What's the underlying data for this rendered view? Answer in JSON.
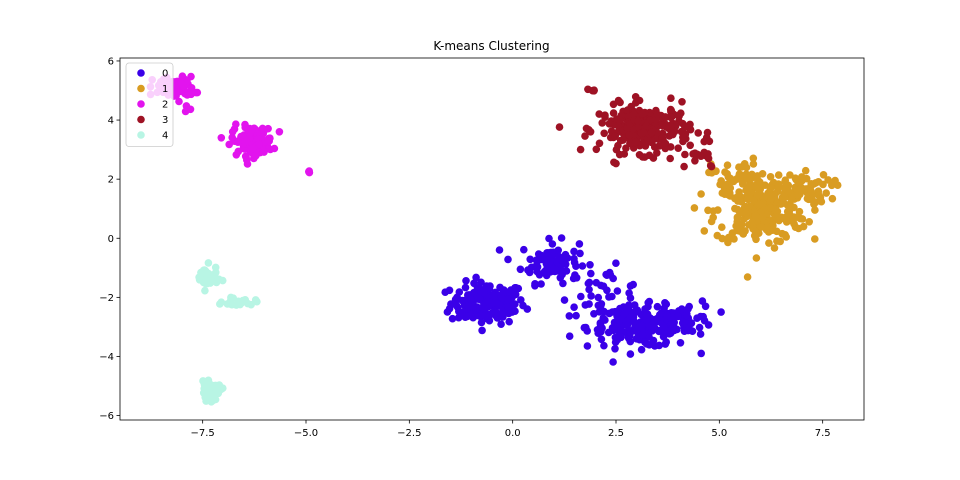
{
  "chart_data": {
    "type": "scatter",
    "title": "K-means Clustering",
    "xlabel": "",
    "ylabel": "",
    "xlim": [
      -9.5,
      8.5
    ],
    "ylim": [
      -6.15,
      6.1
    ],
    "xticks": [
      -7.5,
      -5.0,
      -2.5,
      0.0,
      2.5,
      5.0,
      7.5
    ],
    "xtick_labels": [
      "−7.5",
      "−5.0",
      "−2.5",
      "0.0",
      "2.5",
      "5.0",
      "7.5"
    ],
    "yticks": [
      -6,
      -4,
      -2,
      0,
      2,
      4,
      6
    ],
    "ytick_labels": [
      "−6",
      "−4",
      "−2",
      "0",
      "2",
      "4",
      "6"
    ],
    "grid": false,
    "legend_position": "top-left",
    "series": [
      {
        "name": "0",
        "color": "#3a00e8",
        "clusters": [
          {
            "cx": -0.6,
            "cy": -2.2,
            "sx": 0.45,
            "sy": 0.35,
            "n": 170
          },
          {
            "cx": 0.9,
            "cy": -0.8,
            "sx": 0.35,
            "sy": 0.35,
            "n": 80
          },
          {
            "cx": 3.1,
            "cy": -3.0,
            "sx": 0.65,
            "sy": 0.35,
            "n": 190
          },
          {
            "cx": 4.2,
            "cy": -2.7,
            "sx": 0.35,
            "sy": 0.3,
            "n": 45
          },
          {
            "cx": 2.2,
            "cy": -1.8,
            "sx": 0.5,
            "sy": 0.4,
            "n": 35
          }
        ]
      },
      {
        "name": "1",
        "color": "#d99c22",
        "clusters": [
          {
            "cx": 6.0,
            "cy": 0.9,
            "sx": 0.55,
            "sy": 0.55,
            "n": 230
          },
          {
            "cx": 6.8,
            "cy": 1.7,
            "sx": 0.45,
            "sy": 0.25,
            "n": 60
          },
          {
            "cx": 5.4,
            "cy": 2.1,
            "sx": 0.3,
            "sy": 0.3,
            "n": 40
          }
        ]
      },
      {
        "name": "2",
        "color": "#e214ee",
        "clusters": [
          {
            "cx": -8.2,
            "cy": 5.1,
            "sx": 0.25,
            "sy": 0.18,
            "n": 80
          },
          {
            "cx": -6.3,
            "cy": 3.3,
            "sx": 0.25,
            "sy": 0.25,
            "n": 110
          },
          {
            "cx": -7.8,
            "cy": 4.3,
            "sx": 0.15,
            "sy": 0.15,
            "n": 5
          },
          {
            "cx": -4.9,
            "cy": 2.25,
            "sx": 0.02,
            "sy": 0.02,
            "n": 3
          }
        ]
      },
      {
        "name": "3",
        "color": "#9e1224",
        "clusters": [
          {
            "cx": 3.2,
            "cy": 3.7,
            "sx": 0.55,
            "sy": 0.4,
            "n": 240
          },
          {
            "cx": 4.5,
            "cy": 2.7,
            "sx": 0.3,
            "sy": 0.2,
            "n": 15
          },
          {
            "cx": 1.9,
            "cy": 5.0,
            "sx": 0.1,
            "sy": 0.05,
            "n": 4
          }
        ]
      },
      {
        "name": "4",
        "color": "#b8f5e4",
        "clusters": [
          {
            "cx": -7.4,
            "cy": -1.35,
            "sx": 0.13,
            "sy": 0.2,
            "n": 45
          },
          {
            "cx": -6.6,
            "cy": -2.15,
            "sx": 0.2,
            "sy": 0.08,
            "n": 20
          },
          {
            "cx": -7.3,
            "cy": -5.2,
            "sx": 0.13,
            "sy": 0.15,
            "n": 40
          }
        ]
      }
    ]
  }
}
